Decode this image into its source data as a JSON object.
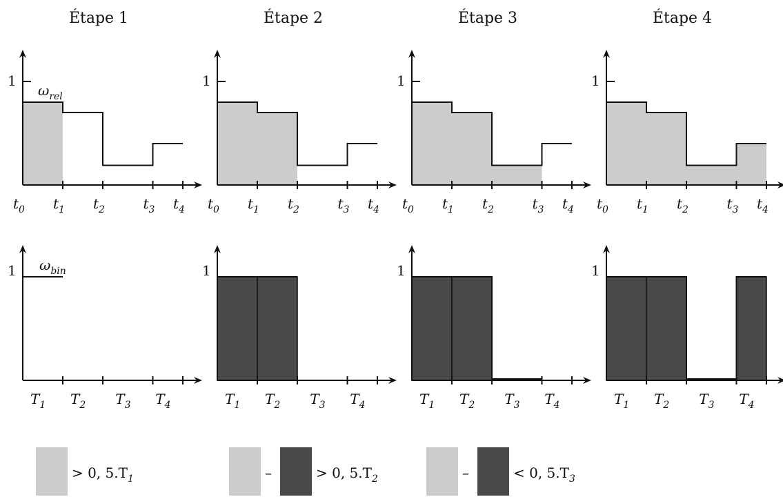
{
  "colors": {
    "light": "#cccccc",
    "dark": "#4a4a4a",
    "line": "#111111"
  },
  "panels": [
    {
      "title": "Étape 1",
      "fill_to": 1
    },
    {
      "title": "Étape 2",
      "fill_to": 2
    },
    {
      "title": "Étape 3",
      "fill_to": 3
    },
    {
      "title": "Étape 4",
      "fill_to": 4
    }
  ],
  "relative": {
    "label": "ω",
    "label_sub": "rel",
    "y_tick_label": "1",
    "x_ticks": [
      {
        "base": "t",
        "sub": "0"
      },
      {
        "base": "t",
        "sub": "1"
      },
      {
        "base": "t",
        "sub": "2"
      },
      {
        "base": "t",
        "sub": "3"
      },
      {
        "base": "t",
        "sub": "4"
      }
    ],
    "x": [
      0,
      1,
      2,
      3.25,
      4
    ],
    "levels": [
      0.8,
      0.7,
      0.19,
      0.4
    ]
  },
  "binary": {
    "label": "ω",
    "label_sub": "bin",
    "y_tick_label": "1",
    "x_ticks": [
      {
        "base": "T",
        "sub": "1"
      },
      {
        "base": "T",
        "sub": "2"
      },
      {
        "base": "T",
        "sub": "3"
      },
      {
        "base": "T",
        "sub": "4"
      }
    ],
    "stages": [
      [
        1
      ],
      [
        1,
        1
      ],
      [
        1,
        1,
        0
      ],
      [
        1,
        1,
        0,
        1
      ]
    ]
  },
  "legend": [
    {
      "text": "> 0, 5.T",
      "sub": "1",
      "minus": ""
    },
    {
      "text": "> 0, 5.T",
      "sub": "2",
      "minus": "–"
    },
    {
      "text": "< 0, 5.T",
      "sub": "3",
      "minus": "–"
    }
  ]
}
